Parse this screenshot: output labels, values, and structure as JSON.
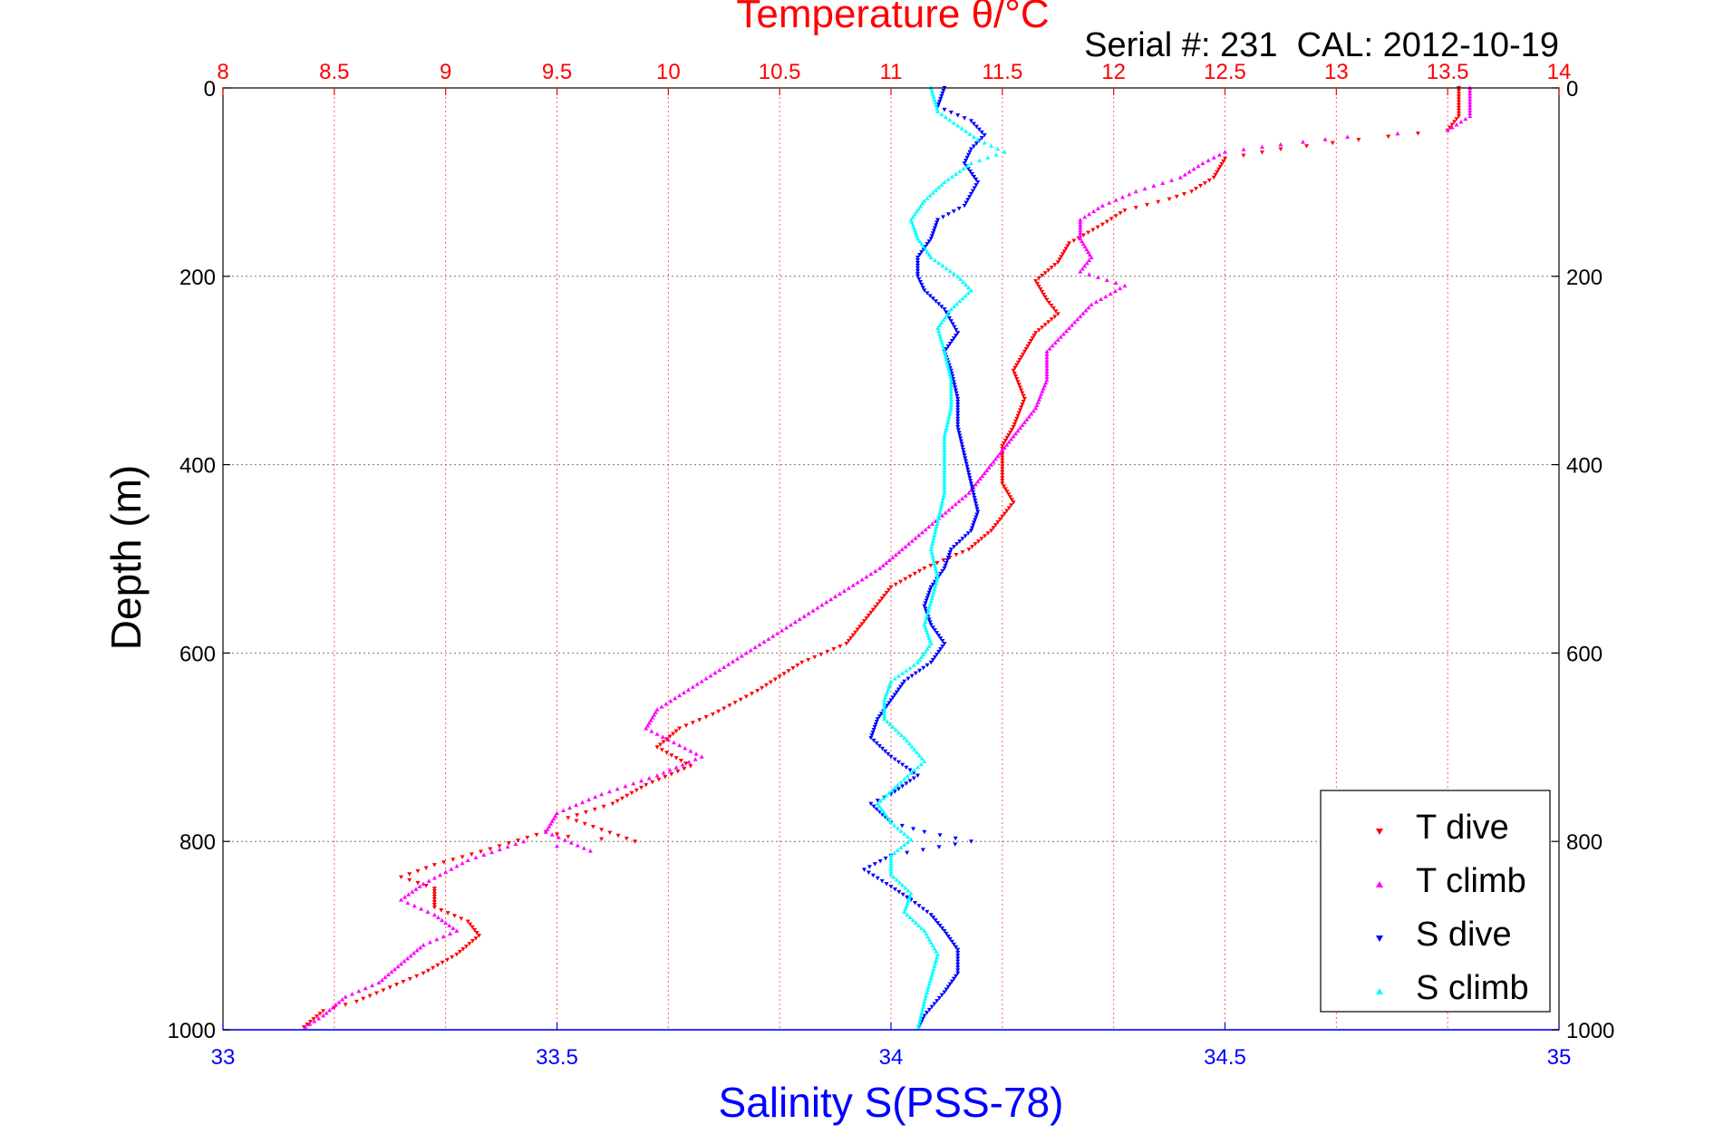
{
  "chart_data": {
    "type": "scatter",
    "title": "Temperature θ/°C",
    "subtitle": "Serial #: 231  CAL: 2012-10-19",
    "xlabel_bottom": "Salinity S(PSS-78)",
    "xlabel_top": "Temperature θ/°C",
    "ylabel": "Depth (m)",
    "ylim": [
      0,
      1000
    ],
    "y_reversed": true,
    "yticks": [
      "0",
      "200",
      "400",
      "600",
      "800",
      "1000"
    ],
    "xlim_bottom": [
      33,
      35
    ],
    "xticks_bottom": [
      "33",
      "33.5",
      "34",
      "34.5",
      "35"
    ],
    "xlim_top": [
      8,
      14
    ],
    "xticks_top": [
      "8",
      "8.5",
      "9",
      "9.5",
      "10",
      "10.5",
      "11",
      "11.5",
      "12",
      "12.5",
      "13",
      "13.5",
      "14"
    ],
    "grid": true,
    "legend_position": "bottom-right",
    "colors": {
      "t_dive": "#ff0000",
      "t_climb": "#ff00ff",
      "s_dive": "#0000ff",
      "s_climb": "#00ffff",
      "top_axis": "#ff0000",
      "bottom_axis": "#0000ff"
    },
    "series": [
      {
        "name": "T dive",
        "axis": "top",
        "points": [
          [
            13.55,
            0
          ],
          [
            13.55,
            30
          ],
          [
            13.5,
            45
          ],
          [
            13.1,
            55
          ],
          [
            12.75,
            65
          ],
          [
            12.5,
            75
          ],
          [
            12.45,
            95
          ],
          [
            12.35,
            110
          ],
          [
            12.25,
            118
          ],
          [
            12.05,
            130
          ],
          [
            11.95,
            145
          ],
          [
            11.8,
            165
          ],
          [
            11.75,
            185
          ],
          [
            11.65,
            205
          ],
          [
            11.7,
            225
          ],
          [
            11.75,
            240
          ],
          [
            11.65,
            260
          ],
          [
            11.6,
            280
          ],
          [
            11.55,
            300
          ],
          [
            11.6,
            330
          ],
          [
            11.55,
            360
          ],
          [
            11.5,
            380
          ],
          [
            11.5,
            420
          ],
          [
            11.55,
            440
          ],
          [
            11.45,
            470
          ],
          [
            11.35,
            490
          ],
          [
            11.15,
            510
          ],
          [
            11.0,
            530
          ],
          [
            10.9,
            560
          ],
          [
            10.8,
            590
          ],
          [
            10.6,
            610
          ],
          [
            10.4,
            640
          ],
          [
            10.2,
            665
          ],
          [
            10.05,
            680
          ],
          [
            9.95,
            700
          ],
          [
            10.1,
            720
          ],
          [
            9.9,
            740
          ],
          [
            9.75,
            760
          ],
          [
            9.55,
            775
          ],
          [
            9.85,
            800
          ],
          [
            9.55,
            795
          ],
          [
            9.45,
            790
          ],
          [
            9.2,
            808
          ],
          [
            8.95,
            825
          ],
          [
            8.8,
            838
          ],
          [
            8.95,
            850
          ],
          [
            8.95,
            870
          ],
          [
            9.1,
            885
          ],
          [
            9.15,
            900
          ],
          [
            9.05,
            920
          ],
          [
            8.9,
            940
          ],
          [
            8.75,
            955
          ],
          [
            8.6,
            970
          ],
          [
            8.45,
            980
          ],
          [
            8.35,
            1000
          ]
        ]
      },
      {
        "name": "T climb",
        "axis": "top",
        "points": [
          [
            13.6,
            0
          ],
          [
            13.6,
            30
          ],
          [
            13.5,
            45
          ],
          [
            13.05,
            52
          ],
          [
            12.75,
            60
          ],
          [
            12.5,
            68
          ],
          [
            12.4,
            80
          ],
          [
            12.3,
            95
          ],
          [
            12.1,
            110
          ],
          [
            11.95,
            125
          ],
          [
            11.85,
            140
          ],
          [
            11.85,
            160
          ],
          [
            11.9,
            180
          ],
          [
            11.85,
            195
          ],
          [
            12.05,
            210
          ],
          [
            11.9,
            230
          ],
          [
            11.8,
            255
          ],
          [
            11.7,
            280
          ],
          [
            11.7,
            310
          ],
          [
            11.65,
            340
          ],
          [
            11.55,
            370
          ],
          [
            11.45,
            400
          ],
          [
            11.35,
            430
          ],
          [
            11.2,
            460
          ],
          [
            11.05,
            490
          ],
          [
            10.95,
            510
          ],
          [
            10.75,
            540
          ],
          [
            10.55,
            570
          ],
          [
            10.35,
            600
          ],
          [
            10.15,
            630
          ],
          [
            9.95,
            660
          ],
          [
            9.9,
            680
          ],
          [
            10.15,
            710
          ],
          [
            9.95,
            730
          ],
          [
            9.7,
            750
          ],
          [
            9.5,
            770
          ],
          [
            9.45,
            790
          ],
          [
            9.65,
            810
          ],
          [
            9.35,
            800
          ],
          [
            9.1,
            820
          ],
          [
            8.9,
            845
          ],
          [
            8.8,
            862
          ],
          [
            8.95,
            878
          ],
          [
            9.05,
            895
          ],
          [
            8.9,
            910
          ],
          [
            8.8,
            930
          ],
          [
            8.7,
            950
          ],
          [
            8.55,
            965
          ],
          [
            8.45,
            985
          ],
          [
            8.35,
            1000
          ]
        ]
      },
      {
        "name": "S dive",
        "axis": "bottom",
        "points": [
          [
            34.08,
            0
          ],
          [
            34.07,
            20
          ],
          [
            34.12,
            35
          ],
          [
            34.14,
            50
          ],
          [
            34.12,
            65
          ],
          [
            34.11,
            80
          ],
          [
            34.13,
            100
          ],
          [
            34.11,
            125
          ],
          [
            34.07,
            140
          ],
          [
            34.06,
            160
          ],
          [
            34.04,
            180
          ],
          [
            34.04,
            200
          ],
          [
            34.05,
            215
          ],
          [
            34.08,
            235
          ],
          [
            34.1,
            260
          ],
          [
            34.08,
            280
          ],
          [
            34.09,
            300
          ],
          [
            34.1,
            330
          ],
          [
            34.1,
            360
          ],
          [
            34.11,
            390
          ],
          [
            34.12,
            420
          ],
          [
            34.13,
            450
          ],
          [
            34.12,
            470
          ],
          [
            34.09,
            490
          ],
          [
            34.08,
            510
          ],
          [
            34.06,
            530
          ],
          [
            34.05,
            550
          ],
          [
            34.06,
            570
          ],
          [
            34.08,
            590
          ],
          [
            34.06,
            610
          ],
          [
            34.02,
            630
          ],
          [
            34.0,
            650
          ],
          [
            33.98,
            670
          ],
          [
            33.97,
            690
          ],
          [
            34.0,
            710
          ],
          [
            34.04,
            730
          ],
          [
            34.0,
            750
          ],
          [
            33.97,
            760
          ],
          [
            34.0,
            780
          ],
          [
            34.05,
            790
          ],
          [
            34.12,
            800
          ],
          [
            34.0,
            815
          ],
          [
            33.96,
            830
          ],
          [
            34.0,
            848
          ],
          [
            34.03,
            862
          ],
          [
            34.06,
            878
          ],
          [
            34.08,
            895
          ],
          [
            34.1,
            915
          ],
          [
            34.1,
            940
          ],
          [
            34.08,
            960
          ],
          [
            34.05,
            985
          ],
          [
            34.04,
            1000
          ]
        ]
      },
      {
        "name": "S climb",
        "axis": "bottom",
        "points": [
          [
            34.06,
            0
          ],
          [
            34.07,
            25
          ],
          [
            34.1,
            40
          ],
          [
            34.13,
            55
          ],
          [
            34.17,
            68
          ],
          [
            34.12,
            80
          ],
          [
            34.08,
            100
          ],
          [
            34.05,
            120
          ],
          [
            34.03,
            140
          ],
          [
            34.04,
            160
          ],
          [
            34.06,
            180
          ],
          [
            34.1,
            200
          ],
          [
            34.12,
            215
          ],
          [
            34.09,
            235
          ],
          [
            34.07,
            255
          ],
          [
            34.08,
            280
          ],
          [
            34.09,
            310
          ],
          [
            34.09,
            340
          ],
          [
            34.08,
            370
          ],
          [
            34.08,
            400
          ],
          [
            34.08,
            430
          ],
          [
            34.07,
            460
          ],
          [
            34.06,
            490
          ],
          [
            34.07,
            520
          ],
          [
            34.06,
            545
          ],
          [
            34.05,
            570
          ],
          [
            34.06,
            590
          ],
          [
            34.04,
            610
          ],
          [
            34.0,
            630
          ],
          [
            33.99,
            650
          ],
          [
            33.99,
            670
          ],
          [
            34.02,
            690
          ],
          [
            34.05,
            715
          ],
          [
            34.01,
            740
          ],
          [
            33.98,
            760
          ],
          [
            34.0,
            780
          ],
          [
            34.03,
            798
          ],
          [
            34.0,
            815
          ],
          [
            34.0,
            835
          ],
          [
            34.03,
            855
          ],
          [
            34.02,
            875
          ],
          [
            34.05,
            895
          ],
          [
            34.07,
            920
          ],
          [
            34.06,
            945
          ],
          [
            34.05,
            970
          ],
          [
            34.04,
            1000
          ]
        ]
      }
    ]
  }
}
